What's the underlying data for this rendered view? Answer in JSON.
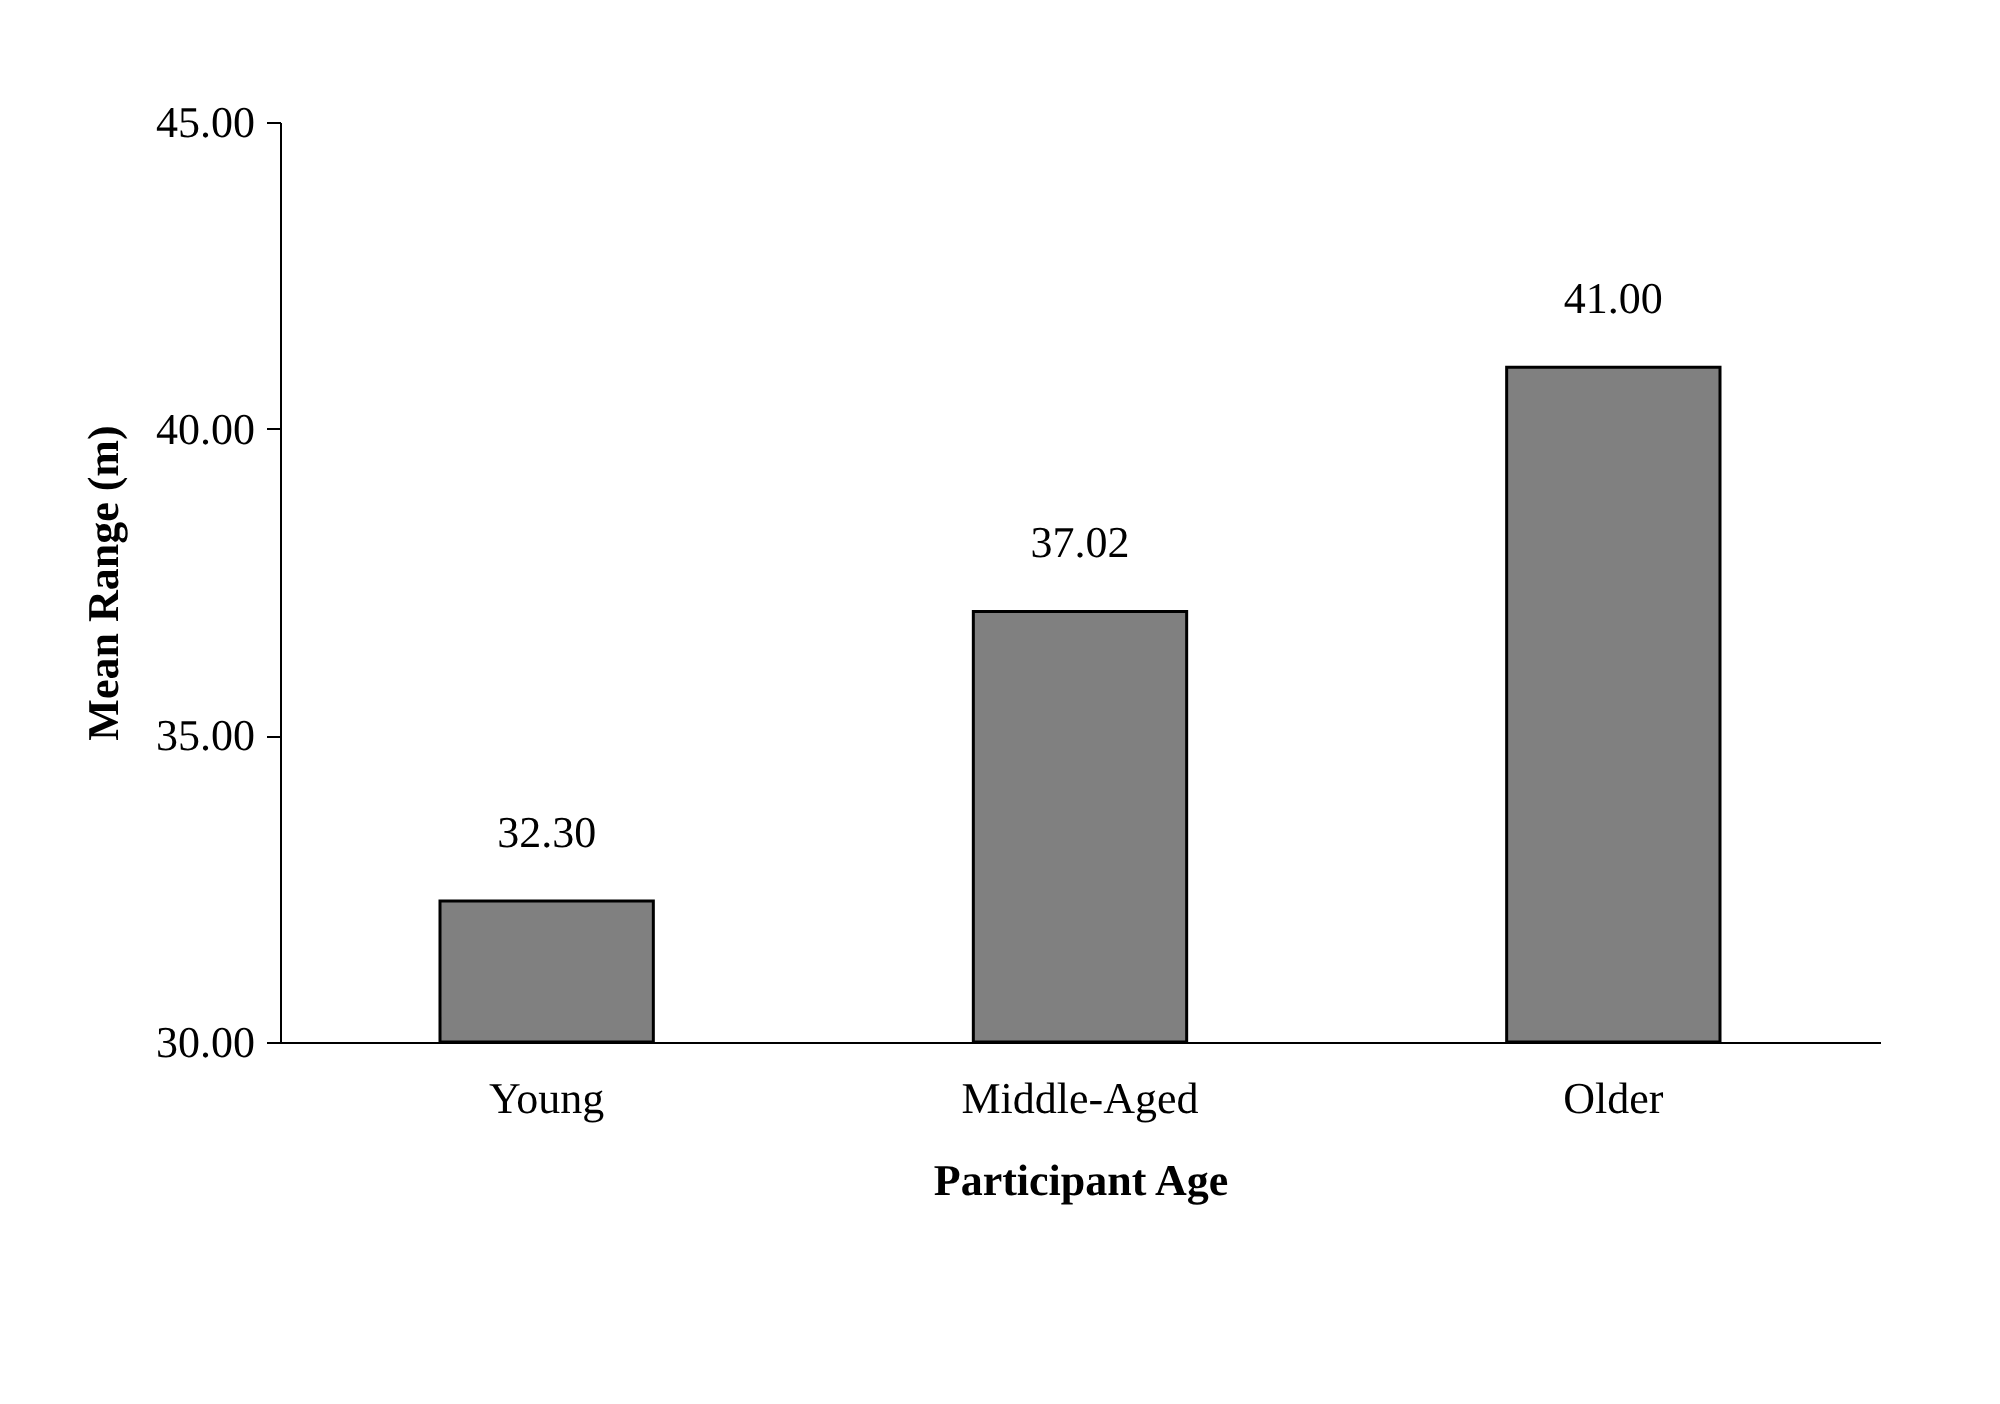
{
  "chart_data": {
    "type": "bar",
    "xlabel": "Participant Age",
    "ylabel": "Mean Range (m)",
    "categories": [
      "Young",
      "Middle-Aged",
      "Older"
    ],
    "values": [
      32.3,
      37.02,
      41.0
    ],
    "value_labels": [
      "32.30",
      "37.02",
      "41.00"
    ],
    "color": "#808080",
    "ylim": [
      30,
      45
    ],
    "yticks": [
      {
        "value": 30,
        "label": "30.00"
      },
      {
        "value": 35,
        "label": "35.00"
      },
      {
        "value": 40,
        "label": "40.00"
      },
      {
        "value": 45,
        "label": "45.00"
      }
    ],
    "grid": false
  }
}
